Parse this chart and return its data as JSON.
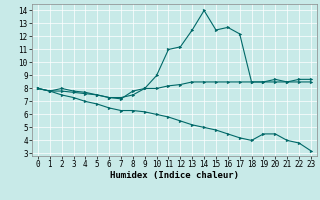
{
  "xlabel": "Humidex (Indice chaleur)",
  "xlim": [
    -0.5,
    23.5
  ],
  "ylim": [
    2.8,
    14.5
  ],
  "yticks": [
    3,
    4,
    5,
    6,
    7,
    8,
    9,
    10,
    11,
    12,
    13,
    14
  ],
  "xticks": [
    0,
    1,
    2,
    3,
    4,
    5,
    6,
    7,
    8,
    9,
    10,
    11,
    12,
    13,
    14,
    15,
    16,
    17,
    18,
    19,
    20,
    21,
    22,
    23
  ],
  "bg_color": "#c8eae8",
  "line_color": "#006868",
  "line1_x": [
    0,
    1,
    2,
    3,
    4,
    5,
    6,
    7,
    8,
    9,
    10,
    11,
    12,
    13,
    14,
    15,
    16,
    17,
    18,
    19,
    20,
    21,
    22,
    23
  ],
  "line1_y": [
    8.0,
    7.8,
    8.0,
    7.8,
    7.7,
    7.5,
    7.3,
    7.3,
    7.5,
    8.0,
    9.0,
    11.0,
    11.2,
    12.5,
    14.0,
    12.5,
    12.7,
    12.2,
    8.5,
    8.5,
    8.7,
    8.5,
    8.7,
    8.7
  ],
  "line2_x": [
    0,
    1,
    2,
    3,
    4,
    5,
    6,
    7,
    8,
    9,
    10,
    11,
    12,
    13,
    14,
    15,
    16,
    17,
    18,
    19,
    20,
    21,
    22,
    23
  ],
  "line2_y": [
    8.0,
    7.8,
    7.8,
    7.7,
    7.6,
    7.5,
    7.3,
    7.2,
    7.8,
    8.0,
    8.0,
    8.2,
    8.3,
    8.5,
    8.5,
    8.5,
    8.5,
    8.5,
    8.5,
    8.5,
    8.5,
    8.5,
    8.5,
    8.5
  ],
  "line3_x": [
    0,
    1,
    2,
    3,
    4,
    5,
    6,
    7,
    8,
    9,
    10,
    11,
    12,
    13,
    14,
    15,
    16,
    17,
    18,
    19,
    20,
    21,
    22,
    23
  ],
  "line3_y": [
    8.0,
    7.8,
    7.5,
    7.3,
    7.0,
    6.8,
    6.5,
    6.3,
    6.3,
    6.2,
    6.0,
    5.8,
    5.5,
    5.2,
    5.0,
    4.8,
    4.5,
    4.2,
    4.0,
    4.5,
    4.5,
    4.0,
    3.8,
    3.2
  ],
  "tick_fontsize": 5.5,
  "xlabel_fontsize": 6.5
}
